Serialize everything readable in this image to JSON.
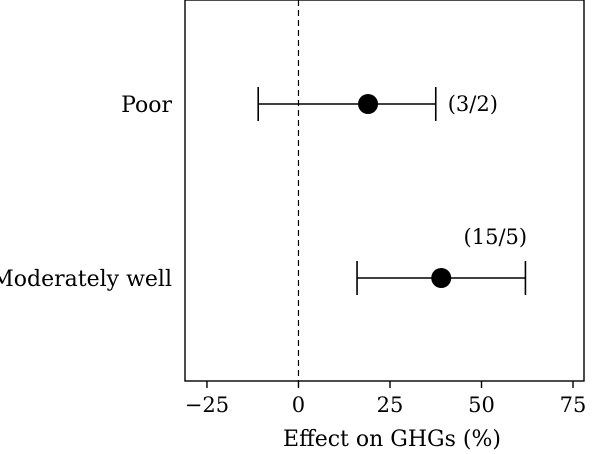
{
  "chart_data": {
    "type": "forest",
    "xlabel": "Effect on GHGs (%)",
    "xlim": [
      -31,
      78
    ],
    "xticks": [
      -25,
      0,
      25,
      50,
      75
    ],
    "xtick_labels": [
      "−25",
      "0",
      "25",
      "50",
      "75"
    ],
    "reference_line": 0,
    "rows": [
      {
        "label": "Poor",
        "estimate": 19,
        "ci_low": -11,
        "ci_high": 37.5,
        "annotation": "(3/2)"
      },
      {
        "label": "Moderately well",
        "estimate": 39,
        "ci_low": 16,
        "ci_high": 62,
        "annotation": "(15/5)"
      }
    ]
  }
}
